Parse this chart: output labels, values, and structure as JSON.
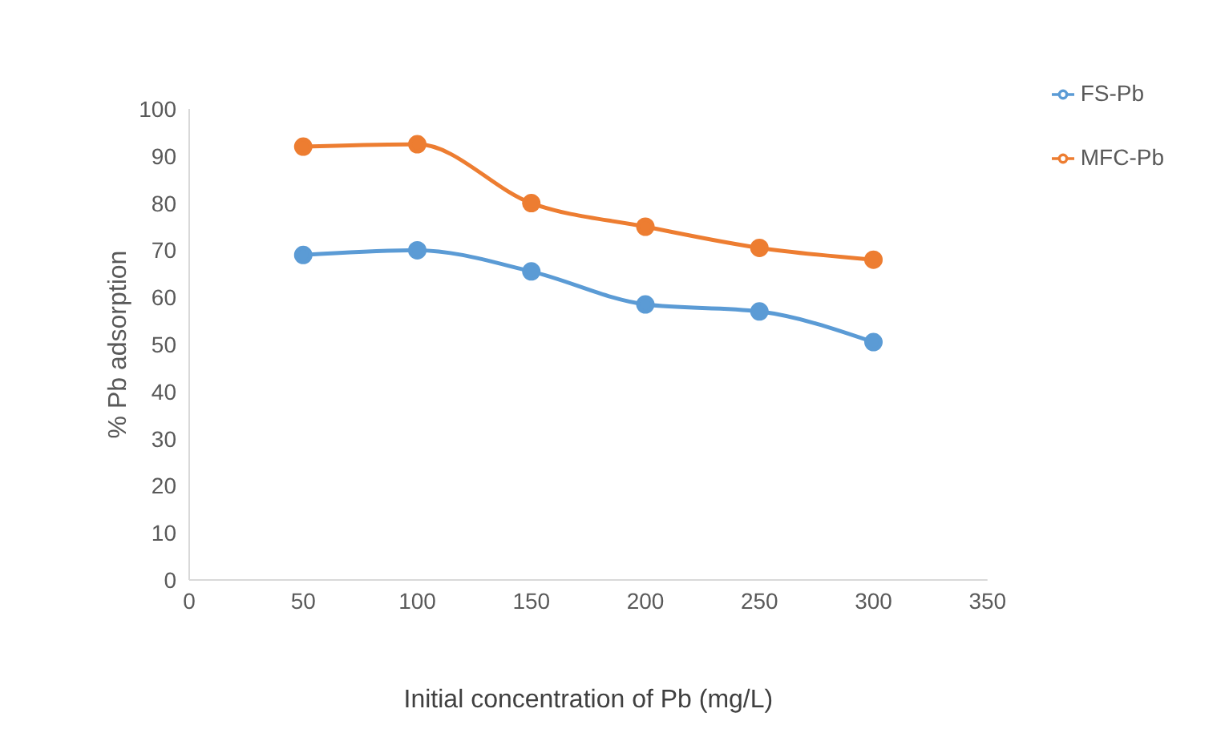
{
  "chart_data": {
    "type": "line",
    "xlabel": "Initial concentration of Pb (mg/L)",
    "ylabel": "% Pb adsorption",
    "x": [
      50,
      100,
      150,
      200,
      250,
      300
    ],
    "series": [
      {
        "name": "FS-Pb",
        "color": "#5b9bd5",
        "values": [
          69,
          70,
          65.5,
          58.5,
          57,
          50.5
        ]
      },
      {
        "name": "MFC-Pb",
        "color": "#ed7d31",
        "values": [
          92,
          92.5,
          80,
          75,
          70.5,
          68
        ]
      }
    ],
    "xlim": [
      0,
      350
    ],
    "xticks": [
      0,
      50,
      100,
      150,
      200,
      250,
      300,
      350
    ],
    "ylim": [
      0,
      100
    ],
    "yticks": [
      0,
      10,
      20,
      30,
      40,
      50,
      60,
      70,
      80,
      90,
      100
    ],
    "grid": false,
    "legend": "top right",
    "marker": "circle",
    "line_style": "solid"
  }
}
